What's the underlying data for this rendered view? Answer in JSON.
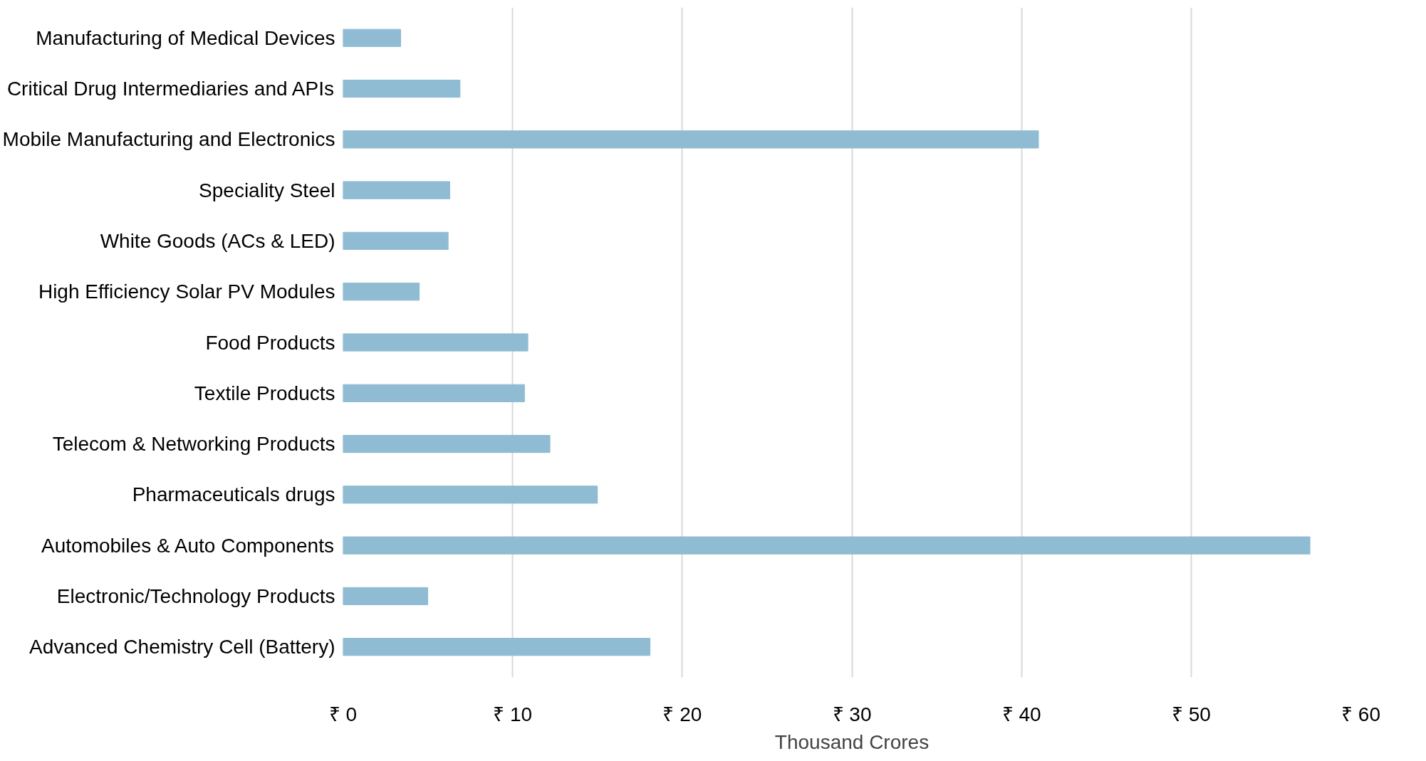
{
  "chart_data": {
    "type": "bar",
    "orientation": "horizontal",
    "xlabel": "Thousand Crores",
    "categories": [
      "Manufacturing of Medical Devices",
      "Critical Drug Intermediaries and APIs",
      "Mobile Manufacturing and Electronics",
      "Speciality Steel",
      "White Goods (ACs & LED)",
      "High Efficiency Solar PV Modules",
      "Food Products",
      "Textile Products",
      "Telecom & Networking Products",
      "Pharmaceuticals drugs",
      "Automobiles & Auto Components",
      "Electronic/Technology Products",
      "Advanced Chemistry Cell (Battery)"
    ],
    "values": [
      3.4,
      6.9,
      41.0,
      6.3,
      6.2,
      4.5,
      10.9,
      10.7,
      12.2,
      15.0,
      57.0,
      5.0,
      18.1
    ],
    "color": "#8fbbd3",
    "xlim": [
      0,
      60
    ],
    "xticks": [
      {
        "value": 0,
        "label": "₹ 0"
      },
      {
        "value": 10,
        "label": "₹ 10"
      },
      {
        "value": 20,
        "label": "₹ 20"
      },
      {
        "value": 30,
        "label": "₹ 30"
      },
      {
        "value": 40,
        "label": "₹ 40"
      },
      {
        "value": 50,
        "label": "₹ 50"
      },
      {
        "value": 60,
        "label": "₹ 60"
      }
    ],
    "grid": "x"
  }
}
